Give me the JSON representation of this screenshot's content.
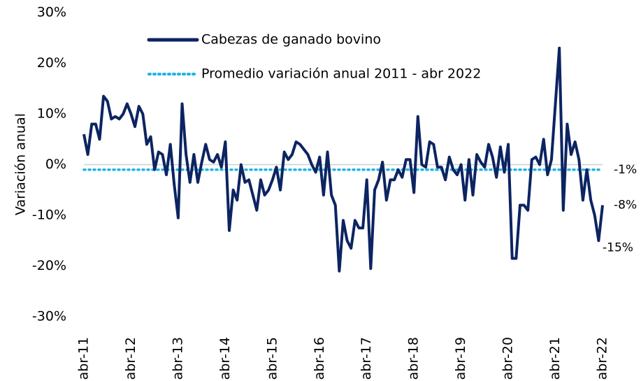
{
  "chart_data": {
    "type": "line",
    "y_label": "Variación anual",
    "categories": [
      "abr-11",
      null,
      null,
      null,
      null,
      null,
      null,
      null,
      null,
      null,
      null,
      null,
      "abr-12",
      null,
      null,
      null,
      null,
      null,
      null,
      null,
      null,
      null,
      null,
      null,
      "abr-13",
      null,
      null,
      null,
      null,
      null,
      null,
      null,
      null,
      null,
      null,
      null,
      "abr-14",
      null,
      null,
      null,
      null,
      null,
      null,
      null,
      null,
      null,
      null,
      null,
      "abr-15",
      null,
      null,
      null,
      null,
      null,
      null,
      null,
      null,
      null,
      null,
      null,
      "abr-16",
      null,
      null,
      null,
      null,
      null,
      null,
      null,
      null,
      null,
      null,
      null,
      "abr-17",
      null,
      null,
      null,
      null,
      null,
      null,
      null,
      null,
      null,
      null,
      null,
      "abr-18",
      null,
      null,
      null,
      null,
      null,
      null,
      null,
      null,
      null,
      null,
      null,
      "abr-19",
      null,
      null,
      null,
      null,
      null,
      null,
      null,
      null,
      null,
      null,
      null,
      "abr-20",
      null,
      null,
      null,
      null,
      null,
      null,
      null,
      null,
      null,
      null,
      null,
      "abr-21",
      null,
      null,
      null,
      null,
      null,
      null,
      null,
      null,
      null,
      null,
      null,
      "abr-22"
    ],
    "series": [
      {
        "name": "Cabezas de ganado bovino",
        "color": "#0c2461",
        "values": [
          6,
          2,
          8,
          8,
          5,
          13.5,
          12.5,
          9,
          9.5,
          9,
          10,
          12,
          10,
          7.5,
          11.5,
          10,
          4,
          5.5,
          -1,
          2.5,
          2,
          -2,
          4,
          -4,
          -10.5,
          12,
          2,
          -3.5,
          2,
          -3.5,
          0.5,
          4,
          1,
          0.5,
          2,
          -0.5,
          4.5,
          -13,
          -5,
          -7,
          0,
          -3.5,
          -3,
          -6,
          -9,
          -3,
          -6,
          -5,
          -3,
          -0.5,
          -5,
          2.5,
          1,
          2,
          4.5,
          4,
          3,
          2,
          0,
          -1.5,
          1.5,
          -6,
          2.5,
          -6,
          -8,
          -21,
          -11,
          -15,
          -16.5,
          -11,
          -12.5,
          -12.5,
          -3,
          -20.5,
          -5,
          -3,
          0.5,
          -7,
          -3,
          -3,
          -1,
          -2.5,
          1,
          1,
          -5.5,
          9.5,
          0,
          -0.5,
          4.5,
          4,
          -0.5,
          -0.5,
          -3,
          1.5,
          -1,
          -2,
          0,
          -7,
          1,
          -6,
          2,
          0.5,
          -0.5,
          4,
          1.5,
          -2.5,
          3.5,
          -1.5,
          4,
          -18.5,
          -18.5,
          -8,
          -8,
          -9,
          1,
          1.5,
          0,
          5,
          -2,
          1,
          12,
          23,
          -9,
          8,
          2,
          4.5,
          1,
          -7,
          -1,
          -7,
          -10,
          -15,
          -8
        ]
      }
    ],
    "reference_line": {
      "name": "Promedio variación anual 2011 - abr 2022",
      "color": "#1fb4e6",
      "value": -1
    },
    "end_labels": [
      {
        "label": "-1%",
        "value": -1
      },
      {
        "label": "-8%",
        "value": -8
      },
      {
        "label": "-15%",
        "value": -15
      }
    ],
    "ylim": [
      -30,
      30
    ],
    "yticks": [
      {
        "value": -30,
        "label": "-30%"
      },
      {
        "value": -20,
        "label": "-20%"
      },
      {
        "value": -10,
        "label": "-10%"
      },
      {
        "value": 0,
        "label": "0%"
      },
      {
        "value": 10,
        "label": "10%"
      },
      {
        "value": 20,
        "label": "20%"
      },
      {
        "value": 30,
        "label": "30%"
      }
    ]
  }
}
